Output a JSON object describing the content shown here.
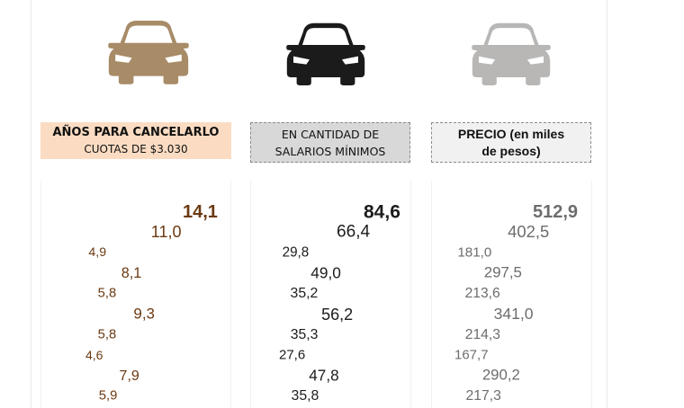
{
  "colors": {
    "years": "#6b3a12",
    "wages": "#1c1c1c",
    "price": "#6d6d6d",
    "car_years": "#a88b67",
    "car_wages": "#1b1b1b",
    "car_price": "#b9b7b6"
  },
  "icons": {
    "years": "car-icon",
    "wages": "car-icon",
    "price": "car-icon"
  },
  "headers": {
    "years": {
      "line1": "AÑOS PARA CANCELARLO",
      "line2": "CUOTAS DE $3.030"
    },
    "wages": {
      "line1": "EN CANTIDAD DE",
      "line2": "SALARIOS MÍNIMOS"
    },
    "price": {
      "line1": "PRECIO (en miles",
      "line2": "de pesos)"
    }
  },
  "chart_data": [
    {
      "type": "scatter",
      "title": "AÑOS PARA CANCELARLO",
      "subtitle": "CUOTAS DE $3.030",
      "values": [
        "14,1",
        "11,0",
        "4,9",
        "8,1",
        "5,8",
        "9,3",
        "5,8",
        "4,6",
        "7,9",
        "5,9"
      ],
      "range": [
        4.6,
        14.1
      ]
    },
    {
      "type": "scatter",
      "title": "EN CANTIDAD DE SALARIOS MÍNIMOS",
      "values": [
        "84,6",
        "66,4",
        "29,8",
        "49,0",
        "35,2",
        "56,2",
        "35,3",
        "27,6",
        "47,8",
        "35,8"
      ],
      "range": [
        27.6,
        84.6
      ]
    },
    {
      "type": "scatter",
      "title": "PRECIO (en miles de pesos)",
      "values": [
        "512,9",
        "402,5",
        "181,0",
        "297,5",
        "213,6",
        "341,0",
        "214,3",
        "167,7",
        "290,2",
        "217,3"
      ],
      "range": [
        167.7,
        512.9
      ]
    }
  ]
}
